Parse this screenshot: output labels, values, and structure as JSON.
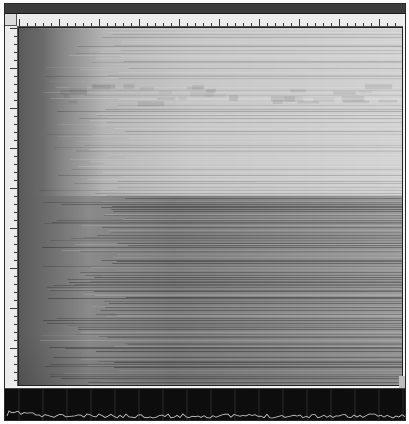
{
  "window": {
    "title": "",
    "icon": "application-icon"
  },
  "panel": {
    "readout": ""
  },
  "colors": {
    "titlebar": "#3c3c3c",
    "ruler": "#ececec",
    "panel": "#0d0d0d",
    "profile_line": "#d0d0d0"
  }
}
